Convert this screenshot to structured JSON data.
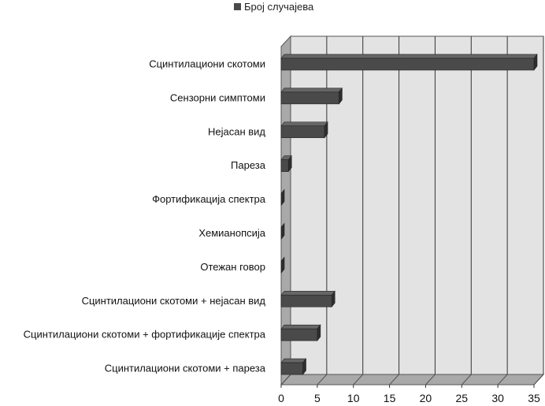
{
  "chart_data": {
    "type": "bar",
    "orientation": "horizontal",
    "three_d": true,
    "categories": [
      "Сцинтилациони скотоми",
      "Сензорни симптоми",
      "Нејасан вид",
      "Пареза",
      "Фортификација спектра",
      "Хемианопсија",
      "Отежан говор",
      "Сцинтилациони скотоми + нејасан вид",
      "Сцинтилациони скотоми + фортификације спектра",
      "Сцинтилациони скотоми + пареза"
    ],
    "series": [
      {
        "name": "Број случајева",
        "values": [
          35,
          8,
          6,
          1,
          0,
          0,
          0,
          7,
          5,
          3
        ]
      }
    ],
    "xlim": [
      0,
      35
    ],
    "xticks": [
      "0",
      "5",
      "10",
      "15",
      "20",
      "25",
      "30",
      "35"
    ],
    "title": "",
    "xlabel": "",
    "ylabel": "",
    "grid": true,
    "legend": "top",
    "colors": {
      "bar": "#4a4a4a",
      "bar_top": "#666666",
      "bar_side": "#2e2e2e",
      "wall": "#e3e3e3",
      "floor": "#a9a9a9",
      "grid": "#333333"
    }
  }
}
